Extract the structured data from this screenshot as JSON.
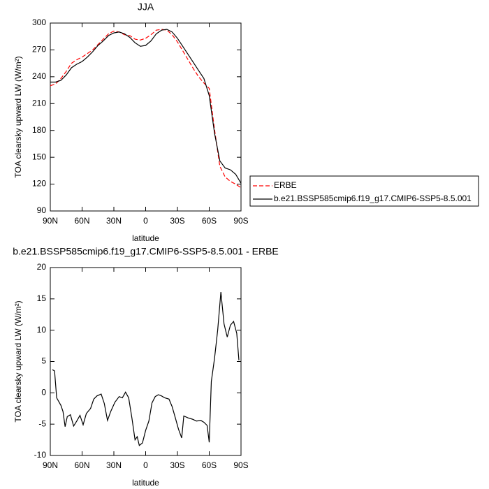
{
  "chart_data": [
    {
      "type": "line",
      "title": "JJA",
      "x_label": "latitude",
      "y_label": "TOA clearsky upward LW (W/m²)",
      "xlim": [
        90,
        -90
      ],
      "xticks": [
        {
          "value": 90,
          "label": "90N"
        },
        {
          "value": 60,
          "label": "60N"
        },
        {
          "value": 30,
          "label": "30N"
        },
        0,
        {
          "value": -30,
          "label": "30S"
        },
        {
          "value": -60,
          "label": "60S"
        },
        {
          "value": -90,
          "label": "90S"
        }
      ],
      "ylim": [
        90,
        300
      ],
      "yticks": [
        90,
        120,
        150,
        180,
        210,
        240,
        270,
        300
      ],
      "x": [
        90,
        85,
        80,
        75,
        70,
        65,
        60,
        55,
        50,
        45,
        40,
        35,
        30,
        25,
        20,
        15,
        10,
        5,
        0,
        -5,
        -10,
        -15,
        -20,
        -25,
        -30,
        -35,
        -40,
        -45,
        -50,
        -55,
        -60,
        -65,
        -70,
        -75,
        -80,
        -85,
        -90
      ],
      "legend": "right",
      "series": [
        {
          "name": "ERBE",
          "color": "#ff0000",
          "dashed": true,
          "values": [
            230,
            232,
            238,
            246,
            255,
            259,
            262,
            266,
            270,
            276,
            282,
            288,
            291,
            290,
            287,
            286,
            282,
            281,
            283,
            287,
            292,
            293,
            292,
            287,
            279,
            269,
            259,
            249,
            240,
            233,
            227,
            181,
            140,
            128,
            123,
            120,
            116
          ]
        },
        {
          "name": "b.e21.BSSP585cmip6.f19_g17.CMIP6-SSP5-8.5.001",
          "color": "#000000",
          "dashed": false,
          "values": [
            234,
            234,
            236,
            242,
            250,
            254,
            257,
            262,
            268,
            275,
            280,
            286,
            289,
            290,
            288,
            284,
            278,
            274,
            275,
            280,
            288,
            292,
            293,
            290,
            283,
            274,
            265,
            256,
            247,
            238,
            219,
            177,
            146,
            138,
            136,
            131,
            121
          ]
        }
      ]
    },
    {
      "type": "line",
      "title": "b.e21.BSSP585cmip6.f19_g17.CMIP6-SSP5-8.5.001 - ERBE",
      "x_label": "latitude",
      "y_label": "TOA clearsky upward LW (W/m²)",
      "xlim": [
        90,
        -90
      ],
      "xticks": [
        {
          "value": 90,
          "label": "90N"
        },
        {
          "value": 60,
          "label": "60N"
        },
        {
          "value": 30,
          "label": "30N"
        },
        0,
        {
          "value": -30,
          "label": "30S"
        },
        {
          "value": -60,
          "label": "60S"
        },
        {
          "value": -90,
          "label": "90S"
        }
      ],
      "ylim": [
        -10,
        20
      ],
      "yticks": [
        -10,
        -5,
        0,
        5,
        10,
        15,
        20
      ],
      "x": [
        88,
        86,
        84,
        80,
        78,
        76,
        74,
        71,
        68,
        65,
        62,
        59,
        56,
        52,
        49,
        46,
        42,
        39,
        36,
        33,
        29,
        25,
        22,
        19,
        16,
        13,
        10,
        8,
        6,
        3,
        0,
        -3,
        -6,
        -9,
        -12,
        -15,
        -18,
        -22,
        -25,
        -28,
        -31,
        -34,
        -36,
        -40,
        -44,
        -48,
        -52,
        -55,
        -58,
        -60,
        -62,
        -65,
        -68,
        -71,
        -74,
        -77,
        -80,
        -83,
        -86,
        -88
      ],
      "series": [
        {
          "color": "#000000",
          "dashed": false,
          "values": [
            3.7,
            3.5,
            -0.8,
            -2,
            -3,
            -5.4,
            -3.8,
            -3.5,
            -5.3,
            -4.5,
            -3.6,
            -5.1,
            -3.3,
            -2.5,
            -1,
            -0.5,
            -0.2,
            -1.7,
            -4.4,
            -3,
            -1.5,
            -0.6,
            -0.8,
            0.1,
            -0.8,
            -4,
            -7.5,
            -7,
            -8.4,
            -8,
            -6,
            -4.5,
            -1.6,
            -0.6,
            -0.3,
            -0.5,
            -0.8,
            -1,
            -2.2,
            -4,
            -5.8,
            -7.2,
            -3.7,
            -4,
            -4.2,
            -4.5,
            -4.4,
            -4.7,
            -5.2,
            -7.9,
            1.8,
            5.5,
            10,
            16.1,
            11,
            8.9,
            10.8,
            11.4,
            9.5,
            5.2
          ]
        }
      ]
    }
  ]
}
